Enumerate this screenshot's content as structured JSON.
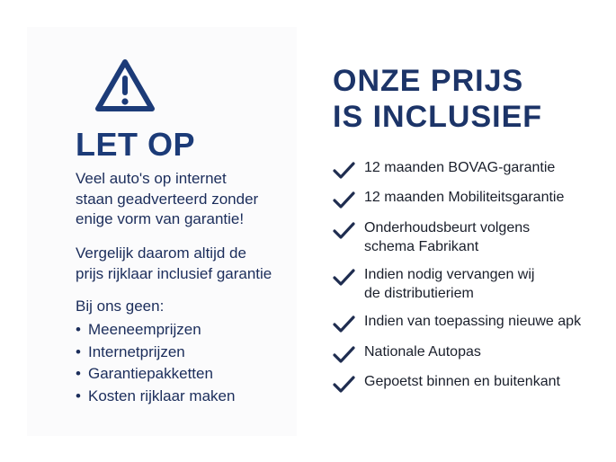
{
  "left": {
    "icon": "warning-triangle-icon",
    "title": "LET OP",
    "paragraph1": [
      "Veel auto's op internet",
      "staan geadverteerd zonder",
      "enige vorm van garantie!"
    ],
    "paragraph2": [
      "Vergelijk daarom altijd de",
      "prijs rijklaar inclusief garantie"
    ],
    "list_heading": "Bij ons geen:",
    "bullet": "•",
    "items": [
      "Meeneemprijzen",
      "Internetprijzen",
      "Garantiepakketten",
      "Kosten rijklaar maken"
    ]
  },
  "right": {
    "title": [
      "ONZE PRIJS",
      "IS INCLUSIEF"
    ],
    "check_icon": "checkmark-icon",
    "items": [
      [
        "12 maanden BOVAG-garantie"
      ],
      [
        "12 maanden Mobiliteitsgarantie"
      ],
      [
        "Onderhoudsbeurt volgens",
        "schema Fabrikant"
      ],
      [
        "Indien nodig vervangen wij",
        "de distributieriem"
      ],
      [
        "Indien van toepassing nieuwe apk"
      ],
      [
        "Nationale Autopas"
      ],
      [
        "Gepoetst binnen en buitenkant"
      ]
    ]
  },
  "colors": {
    "navy": "#1c3b78",
    "text": "#1b2d5b",
    "check": "#1f2d50"
  }
}
